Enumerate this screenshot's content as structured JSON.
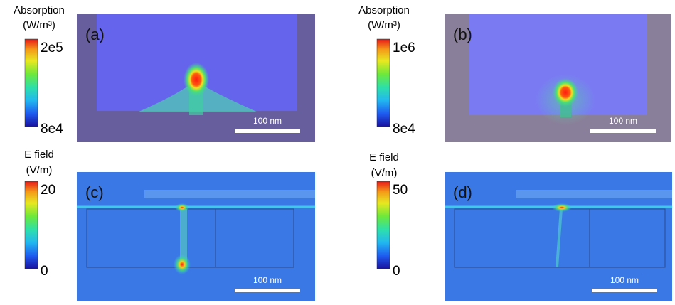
{
  "panels": [
    {
      "label": "(a)",
      "quantity": "Absorption",
      "unit": "(W/m³)",
      "max": "2e5",
      "min": "8e4",
      "scale_bar": "100 nm"
    },
    {
      "label": "(b)",
      "quantity": "Absorption",
      "unit": "(W/m³)",
      "max": "1e6",
      "min": "8e4",
      "scale_bar": "100 nm"
    },
    {
      "label": "(c)",
      "quantity": "E field",
      "unit": "(V/m)",
      "max": "20",
      "min": "0",
      "scale_bar": "100 nm"
    },
    {
      "label": "(d)",
      "quantity": "E field",
      "unit": "(V/m)",
      "max": "50",
      "min": "0",
      "scale_bar": "100 nm"
    }
  ]
}
